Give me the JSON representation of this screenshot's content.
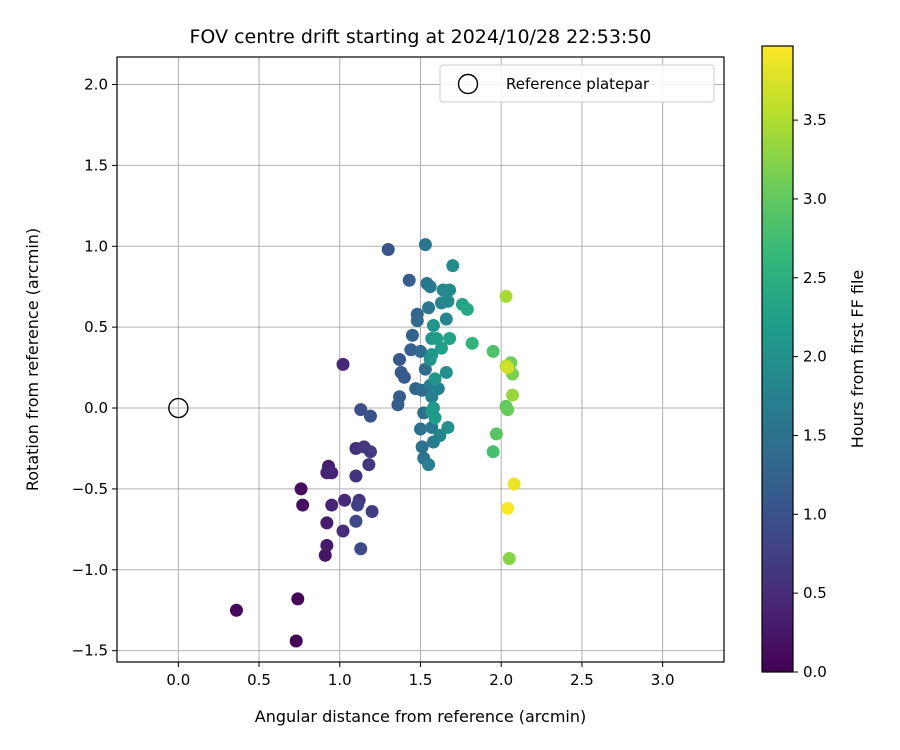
{
  "chart_data": {
    "type": "scatter",
    "title": "FOV centre drift starting at 2024/10/28 22:53:50",
    "xlabel": "Angular distance from reference (arcmin)",
    "ylabel": "Rotation from reference (arcmin)",
    "xlim": [
      -0.38,
      3.38
    ],
    "ylim": [
      -1.57,
      2.17
    ],
    "xticks": [
      0.0,
      0.5,
      1.0,
      1.5,
      2.0,
      2.5,
      3.0
    ],
    "xtick_labels": [
      "0.0",
      "0.5",
      "1.0",
      "1.5",
      "2.0",
      "2.5",
      "3.0"
    ],
    "yticks": [
      -1.5,
      -1.0,
      -0.5,
      0.0,
      0.5,
      1.0,
      1.5,
      2.0
    ],
    "ytick_labels": [
      "−1.5",
      "−1.0",
      "−0.5",
      "0.0",
      "0.5",
      "1.0",
      "1.5",
      "2.0"
    ],
    "grid": true,
    "legend": {
      "placement": "upper-right",
      "entries": [
        "Reference platepar"
      ]
    },
    "reference_point": {
      "x": 0.0,
      "y": 0.0,
      "label": "Reference platepar"
    },
    "colorbar": {
      "label": "Hours from first FF file",
      "colormap": "viridis",
      "range": [
        0.0,
        3.97
      ],
      "ticks": [
        0.0,
        0.5,
        1.0,
        1.5,
        2.0,
        2.5,
        3.0,
        3.5
      ],
      "tick_labels": [
        "0.0",
        "0.5",
        "1.0",
        "1.5",
        "2.0",
        "2.5",
        "3.0",
        "3.5"
      ]
    },
    "points": [
      {
        "x": 0.73,
        "y": -1.44,
        "h": 0.02
      },
      {
        "x": 0.74,
        "y": -1.18,
        "h": 0.05
      },
      {
        "x": 0.36,
        "y": -1.25,
        "h": 0.08
      },
      {
        "x": 0.76,
        "y": -0.5,
        "h": 0.12
      },
      {
        "x": 0.77,
        "y": -0.6,
        "h": 0.15
      },
      {
        "x": 0.91,
        "y": -0.91,
        "h": 0.22
      },
      {
        "x": 0.92,
        "y": -0.85,
        "h": 0.28
      },
      {
        "x": 0.92,
        "y": -0.71,
        "h": 0.3
      },
      {
        "x": 0.93,
        "y": -0.36,
        "h": 0.32
      },
      {
        "x": 0.92,
        "y": -0.4,
        "h": 0.35
      },
      {
        "x": 0.95,
        "y": -0.4,
        "h": 0.38
      },
      {
        "x": 0.95,
        "y": -0.6,
        "h": 0.4
      },
      {
        "x": 1.02,
        "y": 0.27,
        "h": 0.45
      },
      {
        "x": 1.03,
        "y": -0.57,
        "h": 0.48
      },
      {
        "x": 1.02,
        "y": -0.76,
        "h": 0.5
      },
      {
        "x": 1.1,
        "y": -0.25,
        "h": 0.55
      },
      {
        "x": 1.1,
        "y": -0.42,
        "h": 0.58
      },
      {
        "x": 1.12,
        "y": -0.57,
        "h": 0.6
      },
      {
        "x": 1.15,
        "y": -0.24,
        "h": 0.62
      },
      {
        "x": 1.18,
        "y": -0.35,
        "h": 0.65
      },
      {
        "x": 1.19,
        "y": -0.27,
        "h": 0.68
      },
      {
        "x": 1.2,
        "y": -0.64,
        "h": 0.7
      },
      {
        "x": 1.11,
        "y": -0.6,
        "h": 0.75
      },
      {
        "x": 1.1,
        "y": -0.7,
        "h": 0.85
      },
      {
        "x": 1.13,
        "y": -0.87,
        "h": 0.9
      },
      {
        "x": 1.13,
        "y": -0.01,
        "h": 0.95
      },
      {
        "x": 1.19,
        "y": -0.05,
        "h": 1.0
      },
      {
        "x": 1.3,
        "y": 0.98,
        "h": 1.05
      },
      {
        "x": 1.37,
        "y": 0.3,
        "h": 1.08
      },
      {
        "x": 1.38,
        "y": 0.22,
        "h": 1.1
      },
      {
        "x": 1.4,
        "y": 0.19,
        "h": 1.12
      },
      {
        "x": 1.37,
        "y": 0.07,
        "h": 1.15
      },
      {
        "x": 1.36,
        "y": 0.02,
        "h": 1.18
      },
      {
        "x": 1.43,
        "y": 0.79,
        "h": 1.2
      },
      {
        "x": 1.44,
        "y": 0.36,
        "h": 1.22
      },
      {
        "x": 1.45,
        "y": 0.45,
        "h": 1.25
      },
      {
        "x": 1.47,
        "y": 0.12,
        "h": 1.28
      },
      {
        "x": 1.48,
        "y": 0.58,
        "h": 1.3
      },
      {
        "x": 1.48,
        "y": 0.54,
        "h": 1.32
      },
      {
        "x": 1.5,
        "y": 0.35,
        "h": 1.35
      },
      {
        "x": 1.51,
        "y": 0.11,
        "h": 1.38
      },
      {
        "x": 1.53,
        "y": 0.24,
        "h": 1.4
      },
      {
        "x": 1.52,
        "y": -0.03,
        "h": 1.42
      },
      {
        "x": 1.5,
        "y": -0.13,
        "h": 1.45
      },
      {
        "x": 1.51,
        "y": -0.24,
        "h": 1.48
      },
      {
        "x": 1.52,
        "y": -0.31,
        "h": 1.5
      },
      {
        "x": 1.53,
        "y": 1.01,
        "h": 1.52
      },
      {
        "x": 1.54,
        "y": 0.77,
        "h": 1.55
      },
      {
        "x": 1.55,
        "y": 0.62,
        "h": 1.58
      },
      {
        "x": 1.56,
        "y": 0.75,
        "h": 1.6
      },
      {
        "x": 1.57,
        "y": -0.12,
        "h": 1.62
      },
      {
        "x": 1.58,
        "y": -0.21,
        "h": 1.65
      },
      {
        "x": 1.55,
        "y": -0.35,
        "h": 1.68
      },
      {
        "x": 1.56,
        "y": 0.14,
        "h": 1.7
      },
      {
        "x": 1.57,
        "y": 0.07,
        "h": 1.72
      },
      {
        "x": 1.61,
        "y": 0.12,
        "h": 1.75
      },
      {
        "x": 1.62,
        "y": -0.17,
        "h": 1.78
      },
      {
        "x": 1.63,
        "y": 0.65,
        "h": 1.8
      },
      {
        "x": 1.64,
        "y": 0.73,
        "h": 1.82
      },
      {
        "x": 1.66,
        "y": 0.55,
        "h": 1.85
      },
      {
        "x": 1.67,
        "y": 0.66,
        "h": 1.88
      },
      {
        "x": 1.68,
        "y": 0.73,
        "h": 1.9
      },
      {
        "x": 1.7,
        "y": 0.88,
        "h": 1.92
      },
      {
        "x": 1.66,
        "y": 0.22,
        "h": 1.95
      },
      {
        "x": 1.67,
        "y": -0.12,
        "h": 1.98
      },
      {
        "x": 1.56,
        "y": 0.3,
        "h": 2.0
      },
      {
        "x": 1.57,
        "y": 0.43,
        "h": 2.02
      },
      {
        "x": 1.58,
        "y": 0.51,
        "h": 2.05
      },
      {
        "x": 1.57,
        "y": 0.33,
        "h": 2.08
      },
      {
        "x": 1.59,
        "y": 0.18,
        "h": 2.1
      },
      {
        "x": 1.58,
        "y": 0.0,
        "h": 2.12
      },
      {
        "x": 1.57,
        "y": -0.02,
        "h": 2.15
      },
      {
        "x": 1.59,
        "y": -0.06,
        "h": 2.18
      },
      {
        "x": 1.6,
        "y": 0.43,
        "h": 2.2
      },
      {
        "x": 1.63,
        "y": 0.37,
        "h": 2.22
      },
      {
        "x": 1.68,
        "y": 0.43,
        "h": 2.25
      },
      {
        "x": 1.76,
        "y": 0.64,
        "h": 2.3
      },
      {
        "x": 1.79,
        "y": 0.61,
        "h": 2.38
      },
      {
        "x": 1.82,
        "y": 0.4,
        "h": 2.55
      },
      {
        "x": 1.95,
        "y": -0.27,
        "h": 2.8
      },
      {
        "x": 1.95,
        "y": 0.35,
        "h": 2.85
      },
      {
        "x": 1.97,
        "y": -0.16,
        "h": 2.92
      },
      {
        "x": 2.03,
        "y": 0.01,
        "h": 3.0
      },
      {
        "x": 2.04,
        "y": -0.01,
        "h": 3.05
      },
      {
        "x": 2.06,
        "y": 0.28,
        "h": 3.1
      },
      {
        "x": 2.07,
        "y": 0.21,
        "h": 3.15
      },
      {
        "x": 2.05,
        "y": -0.93,
        "h": 3.25
      },
      {
        "x": 2.07,
        "y": 0.08,
        "h": 3.35
      },
      {
        "x": 2.03,
        "y": 0.69,
        "h": 3.45
      },
      {
        "x": 2.03,
        "y": 0.26,
        "h": 3.55
      },
      {
        "x": 2.04,
        "y": 0.25,
        "h": 3.7
      },
      {
        "x": 2.08,
        "y": -0.47,
        "h": 3.85
      },
      {
        "x": 2.04,
        "y": -0.62,
        "h": 3.95
      }
    ]
  }
}
